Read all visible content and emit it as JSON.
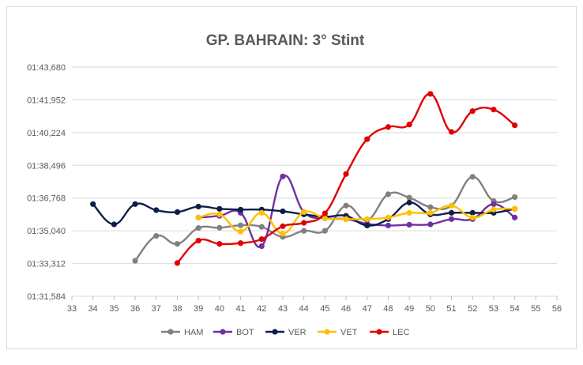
{
  "chart_data": {
    "type": "line",
    "title": "GP. BAHRAIN: 3° Stint",
    "xlabel": "",
    "ylabel": "",
    "x_ticks": [
      33,
      34,
      35,
      36,
      37,
      38,
      39,
      40,
      41,
      42,
      43,
      44,
      45,
      46,
      47,
      48,
      49,
      50,
      51,
      52,
      53,
      54,
      55,
      56
    ],
    "xlim": [
      33,
      56
    ],
    "y_ticks": [
      "01:31,584",
      "01:33,312",
      "01:35,040",
      "01:36,768",
      "01:38,496",
      "01:40,224",
      "01:41,952",
      "01:43,680"
    ],
    "ylim": [
      "01:31,584",
      "01:43,680"
    ],
    "grid": "horizontal",
    "legend_position": "bottom",
    "series": [
      {
        "name": "HAM",
        "color": "#808080",
        "points": [
          [
            36,
            "01:33,460"
          ],
          [
            37,
            "01:34,770"
          ],
          [
            38,
            "01:34,350"
          ],
          [
            39,
            "01:35,190"
          ],
          [
            40,
            "01:35,200"
          ],
          [
            41,
            "01:35,330"
          ],
          [
            42,
            "01:35,250"
          ],
          [
            43,
            "01:34,720"
          ],
          [
            44,
            "01:35,040"
          ],
          [
            45,
            "01:35,040"
          ],
          [
            46,
            "01:36,370"
          ],
          [
            47,
            "01:35,600"
          ],
          [
            48,
            "01:36,970"
          ],
          [
            49,
            "01:36,790"
          ],
          [
            50,
            "01:36,290"
          ],
          [
            51,
            "01:36,370"
          ],
          [
            52,
            "01:37,890"
          ],
          [
            53,
            "01:36,610"
          ],
          [
            54,
            "01:36,820"
          ]
        ]
      },
      {
        "name": "BOT",
        "color": "#7030a0",
        "points": [
          [
            39,
            "01:35,740"
          ],
          [
            40,
            "01:35,830"
          ],
          [
            41,
            "01:35,990"
          ],
          [
            42,
            "01:34,230"
          ],
          [
            43,
            "01:37,910"
          ],
          [
            44,
            "01:36,030"
          ],
          [
            45,
            "01:35,700"
          ],
          [
            46,
            "01:35,660"
          ],
          [
            47,
            "01:35,410"
          ],
          [
            48,
            "01:35,320"
          ],
          [
            49,
            "01:35,360"
          ],
          [
            50,
            "01:35,380"
          ],
          [
            51,
            "01:35,660"
          ],
          [
            52,
            "01:35,660"
          ],
          [
            53,
            "01:36,450"
          ],
          [
            54,
            "01:35,740"
          ]
        ]
      },
      {
        "name": "VER",
        "color": "#0d1e4a",
        "points": [
          [
            34,
            "01:36,450"
          ],
          [
            35,
            "01:35,380"
          ],
          [
            36,
            "01:36,450"
          ],
          [
            37,
            "01:36,130"
          ],
          [
            38,
            "01:36,030"
          ],
          [
            39,
            "01:36,320"
          ],
          [
            40,
            "01:36,200"
          ],
          [
            41,
            "01:36,160"
          ],
          [
            42,
            "01:36,160"
          ],
          [
            43,
            "01:36,070"
          ],
          [
            44,
            "01:35,910"
          ],
          [
            45,
            "01:35,780"
          ],
          [
            46,
            "01:35,830"
          ],
          [
            47,
            "01:35,320"
          ],
          [
            48,
            "01:35,660"
          ],
          [
            49,
            "01:36,530"
          ],
          [
            50,
            "01:35,910"
          ],
          [
            51,
            "01:35,990"
          ],
          [
            52,
            "01:35,990"
          ],
          [
            53,
            "01:35,990"
          ],
          [
            54,
            "01:36,200"
          ]
        ]
      },
      {
        "name": "VET",
        "color": "#ffc000",
        "points": [
          [
            39,
            "01:35,740"
          ],
          [
            40,
            "01:35,910"
          ],
          [
            41,
            "01:35,000"
          ],
          [
            42,
            "01:35,990"
          ],
          [
            43,
            "01:34,890"
          ],
          [
            44,
            "01:36,030"
          ],
          [
            45,
            "01:35,700"
          ],
          [
            46,
            "01:35,660"
          ],
          [
            47,
            "01:35,660"
          ],
          [
            48,
            "01:35,740"
          ],
          [
            49,
            "01:35,990"
          ],
          [
            50,
            "01:35,990"
          ],
          [
            51,
            "01:36,370"
          ],
          [
            52,
            "01:35,740"
          ],
          [
            53,
            "01:36,160"
          ],
          [
            54,
            "01:36,200"
          ]
        ]
      },
      {
        "name": "LEC",
        "color": "#e00000",
        "points": [
          [
            38,
            "01:33,340"
          ],
          [
            39,
            "01:34,520"
          ],
          [
            40,
            "01:34,350"
          ],
          [
            41,
            "01:34,390"
          ],
          [
            42,
            "01:34,600"
          ],
          [
            43,
            "01:35,280"
          ],
          [
            44,
            "01:35,460"
          ],
          [
            45,
            "01:35,960"
          ],
          [
            46,
            "01:38,040"
          ],
          [
            47,
            "01:39,880"
          ],
          [
            48,
            "01:40,520"
          ],
          [
            49,
            "01:40,650"
          ],
          [
            50,
            "01:42,270"
          ],
          [
            51,
            "01:40,260"
          ],
          [
            52,
            "01:41,360"
          ],
          [
            53,
            "01:41,440"
          ],
          [
            54,
            "01:40,610"
          ]
        ]
      }
    ]
  }
}
